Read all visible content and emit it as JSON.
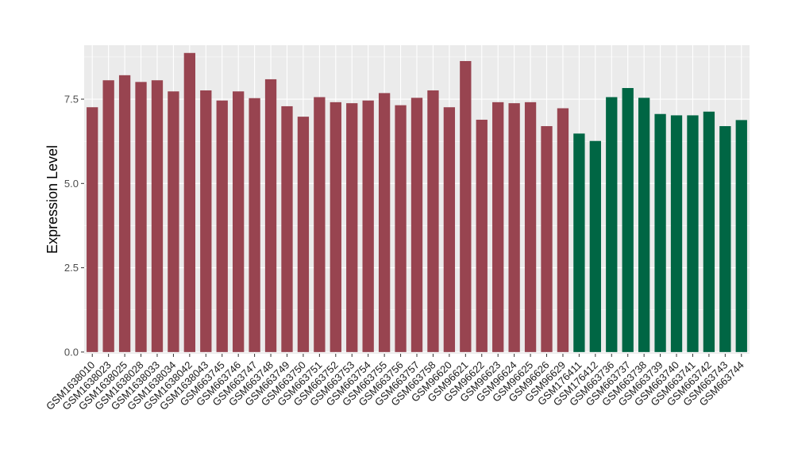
{
  "chart_data": {
    "type": "bar",
    "title": "",
    "xlabel": "",
    "ylabel": "Expression Level",
    "ylim": [
      -0.05,
      9.1
    ],
    "yticks": [
      0.0,
      2.5,
      5.0,
      7.5
    ],
    "ytick_labels": [
      "0.0",
      "2.5",
      "5.0",
      "7.5"
    ],
    "grid": true,
    "panel_background": "#ebebeb",
    "gridline_color": "#ffffff",
    "categories": [
      "GSM1638010",
      "GSM1638023",
      "GSM1638025",
      "GSM1638028",
      "GSM1638033",
      "GSM1638034",
      "GSM1638042",
      "GSM1638043",
      "GSM663745",
      "GSM663746",
      "GSM663747",
      "GSM663748",
      "GSM663749",
      "GSM663750",
      "GSM663751",
      "GSM663752",
      "GSM663753",
      "GSM663754",
      "GSM663755",
      "GSM663756",
      "GSM663757",
      "GSM663758",
      "GSM96620",
      "GSM96621",
      "GSM96622",
      "GSM96623",
      "GSM96624",
      "GSM96625",
      "GSM96626",
      "GSM96629",
      "GSM176411",
      "GSM176412",
      "GSM663736",
      "GSM663737",
      "GSM663738",
      "GSM663739",
      "GSM663740",
      "GSM663741",
      "GSM663742",
      "GSM663743",
      "GSM663744"
    ],
    "values": [
      7.26,
      8.06,
      8.21,
      8.01,
      8.06,
      7.73,
      8.87,
      7.76,
      7.46,
      7.73,
      7.53,
      8.09,
      7.29,
      6.98,
      7.56,
      7.41,
      7.38,
      7.46,
      7.68,
      7.32,
      7.54,
      7.76,
      7.26,
      8.63,
      6.89,
      7.41,
      7.38,
      7.41,
      6.7,
      7.23,
      6.48,
      6.26,
      7.56,
      7.83,
      7.54,
      7.06,
      7.02,
      7.02,
      7.13,
      6.7,
      6.88
    ],
    "bar_colors": [
      "#984450",
      "#984450",
      "#984450",
      "#984450",
      "#984450",
      "#984450",
      "#984450",
      "#984450",
      "#984450",
      "#984450",
      "#984450",
      "#984450",
      "#984450",
      "#984450",
      "#984450",
      "#984450",
      "#984450",
      "#984450",
      "#984450",
      "#984450",
      "#984450",
      "#984450",
      "#984450",
      "#984450",
      "#984450",
      "#984450",
      "#984450",
      "#984450",
      "#984450",
      "#984450",
      "#006644",
      "#006644",
      "#006644",
      "#006644",
      "#006644",
      "#006644",
      "#006644",
      "#006644",
      "#006644",
      "#006644",
      "#006644"
    ]
  }
}
